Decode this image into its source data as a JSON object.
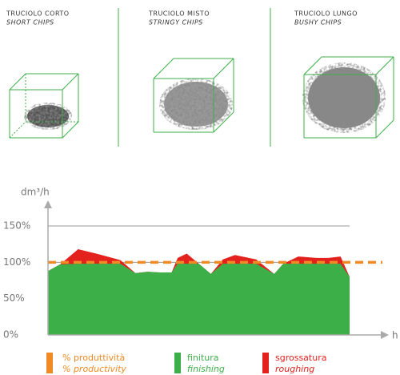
{
  "panels": [
    {
      "title": "TRUCIOLO CORTO",
      "subtitle": "SHORT CHIPS"
    },
    {
      "title": "TRUCIOLO MISTO",
      "subtitle": "STRINGY CHIPS"
    },
    {
      "title": "TRUCIOLO LUNGO",
      "subtitle": "BUSHY CHIPS"
    }
  ],
  "chart_data": {
    "type": "area",
    "y_label": "dm³/h",
    "x_label": "h",
    "x": [
      0,
      4,
      10,
      16,
      24,
      29,
      33,
      37,
      41,
      43,
      46,
      50,
      54,
      58,
      62,
      69,
      75,
      78,
      83,
      89,
      93,
      97,
      100
    ],
    "xlim": [
      0,
      100
    ],
    "ylim": [
      0,
      150
    ],
    "yticks": [
      {
        "value": 0,
        "label": "0%"
      },
      {
        "value": 50,
        "label": "50%"
      },
      {
        "value": 100,
        "label": "100%"
      },
      {
        "value": 150,
        "label": "150%"
      }
    ],
    "grid": true,
    "series": [
      {
        "name": "sgrossatura",
        "name_en": "roughing",
        "color": "#e3211d",
        "values": [
          88,
          97,
          118,
          112,
          103,
          85,
          87,
          86,
          86,
          106,
          112,
          98,
          84,
          104,
          110,
          104,
          84,
          98,
          108,
          106,
          106,
          108,
          80
        ]
      },
      {
        "name": "finitura",
        "name_en": "finishing",
        "color": "#3daf49",
        "values": [
          88,
          97,
          98,
          98,
          98,
          85,
          87,
          86,
          86,
          98,
          98,
          98,
          84,
          98,
          98,
          98,
          84,
          98,
          98,
          98,
          98,
          98,
          80
        ]
      }
    ],
    "reference_line": {
      "name": "% produttività",
      "name_en": "% productivity",
      "value": 100,
      "color": "#f08a24"
    }
  }
}
